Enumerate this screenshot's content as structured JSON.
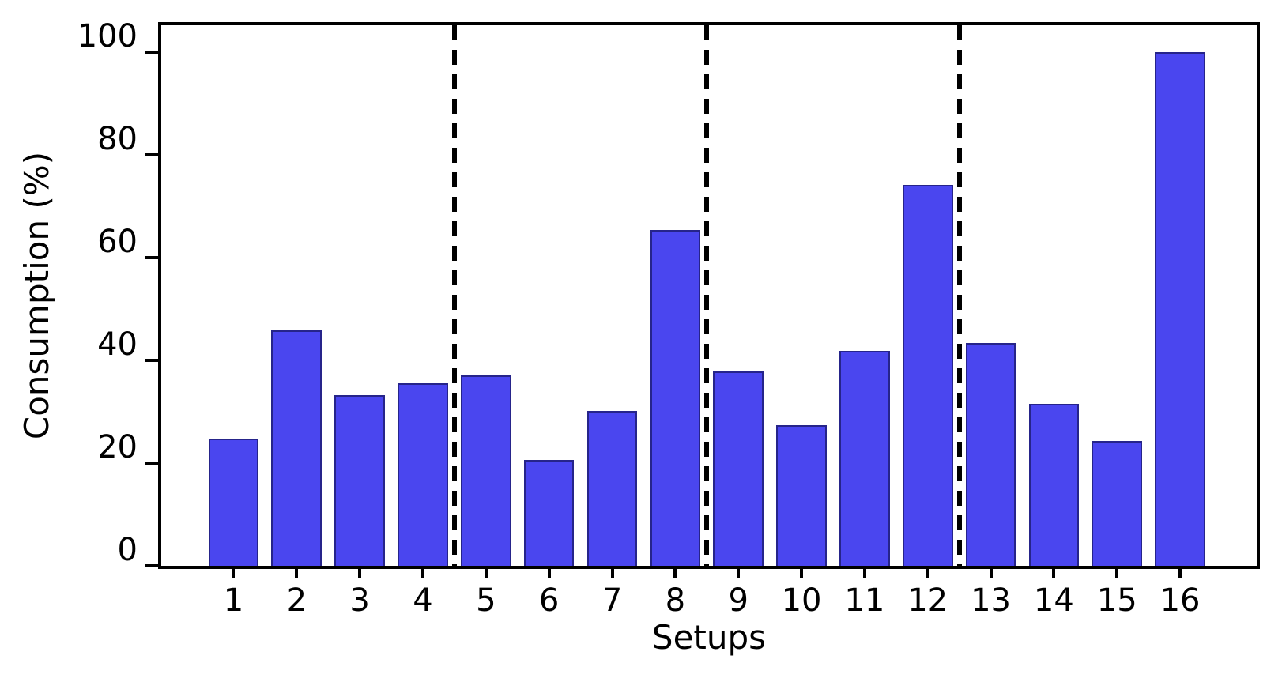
{
  "chart_data": {
    "type": "bar",
    "title": "",
    "xlabel": "Setups",
    "ylabel": "Consumption (%)",
    "categories": [
      "1",
      "2",
      "3",
      "4",
      "5",
      "6",
      "7",
      "8",
      "9",
      "10",
      "11",
      "12",
      "13",
      "14",
      "15",
      "16"
    ],
    "values": [
      24.7,
      45.9,
      33.3,
      35.5,
      37.0,
      20.6,
      30.2,
      65.4,
      37.9,
      27.4,
      41.8,
      74.2,
      43.4,
      31.6,
      24.3,
      100
    ],
    "yticks": [
      0,
      20,
      40,
      60,
      80,
      100
    ],
    "ytick_labels": [
      "0",
      "20",
      "40",
      "60",
      "80",
      "100"
    ],
    "ylim": [
      0,
      105.2
    ],
    "grid": false,
    "legend": null,
    "bar_color": "#4a46ef",
    "bar_edge_color": "#201e78",
    "divider_positions": [
      4.5,
      8.5,
      12.5
    ],
    "divider_color": "#000000",
    "divider_style": "dashed",
    "axis_color": "#000000",
    "background_color": "#ffffff"
  }
}
